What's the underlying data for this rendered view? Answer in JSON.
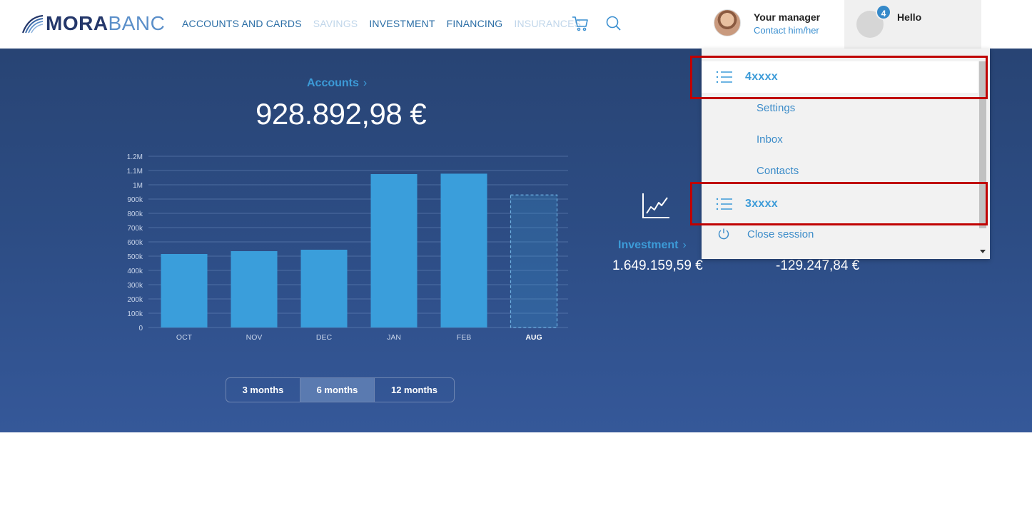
{
  "brand": {
    "name_bold": "MORA",
    "name_light": "BANC"
  },
  "nav": {
    "items": [
      {
        "label": "ACCOUNTS AND CARDS",
        "dim": false
      },
      {
        "label": "SAVINGS",
        "dim": true
      },
      {
        "label": "INVESTMENT",
        "dim": false
      },
      {
        "label": "FINANCING",
        "dim": false
      },
      {
        "label": "INSURANCES",
        "dim": true
      }
    ]
  },
  "manager": {
    "title": "Your manager",
    "link": "Contact him/her"
  },
  "user": {
    "greeting": "Hello",
    "notifications": "4"
  },
  "summary": {
    "accounts_label": "Accounts",
    "accounts_balance": "928.892,98 €",
    "investment_label": "Investment",
    "investment_value": "1.649.159,59 €",
    "financing_value": "-129.247,84 €"
  },
  "periods": [
    "3 months",
    "6 months",
    "12 months"
  ],
  "active_period": "6 months",
  "dropdown": {
    "account1": "4xxxx",
    "sub_items": [
      "Settings",
      "Inbox",
      "Contacts"
    ],
    "account2": "3xxxx",
    "close": "Close session"
  },
  "colors": {
    "accent": "#3c9bd8",
    "bar": "#3a9edb",
    "hero_top": "#284474",
    "hero_bottom": "#355899",
    "highlight": "#c00000"
  },
  "chart_data": {
    "type": "bar",
    "categories": [
      "OCT",
      "NOV",
      "DEC",
      "JAN",
      "FEB",
      "AUG"
    ],
    "values": [
      515000,
      535000,
      545000,
      1075000,
      1078000,
      928893
    ],
    "projected": [
      false,
      false,
      false,
      false,
      false,
      true
    ],
    "y_ticks": [
      "0",
      "100k",
      "200k",
      "300k",
      "400k",
      "500k",
      "600k",
      "700k",
      "800k",
      "900k",
      "1M",
      "1.1M",
      "1.2M"
    ],
    "ylim": [
      0,
      1200000
    ],
    "grid": true
  }
}
